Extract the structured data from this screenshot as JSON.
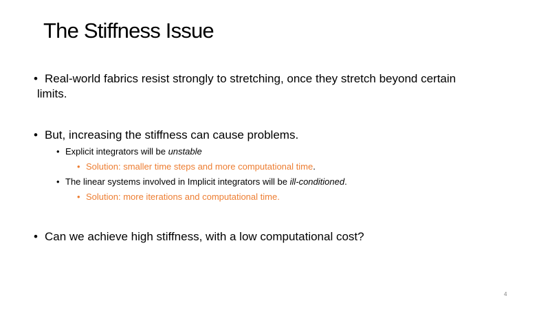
{
  "slide": {
    "title": "The Stiffness Issue",
    "bullet_symbol": "•",
    "bullets": {
      "b1": {
        "line1": "Real-world fabrics resist strongly to stretching, once they stretch beyond certain",
        "line2": "limits."
      },
      "b2": {
        "text": "But, increasing the stiffness can cause problems.",
        "sub1": {
          "prefix": "Explicit integrators will be ",
          "emphasis": "unstable",
          "solution": {
            "text": "Solution: smaller time steps and more computational time",
            "trailing": "."
          }
        },
        "sub2": {
          "prefix": "The linear systems involved in Implicit integrators will be ",
          "emphasis": "ill-conditioned",
          "suffix": ".",
          "solution": {
            "text": "Solution: more iterations and computational time."
          }
        }
      },
      "b3": {
        "text": "Can we achieve high stiffness, with a low computational cost?"
      }
    },
    "page_number": "4",
    "colors": {
      "text": "#000000",
      "accent_orange": "#ED7D31",
      "page_number": "#808080",
      "background": "#ffffff"
    }
  }
}
